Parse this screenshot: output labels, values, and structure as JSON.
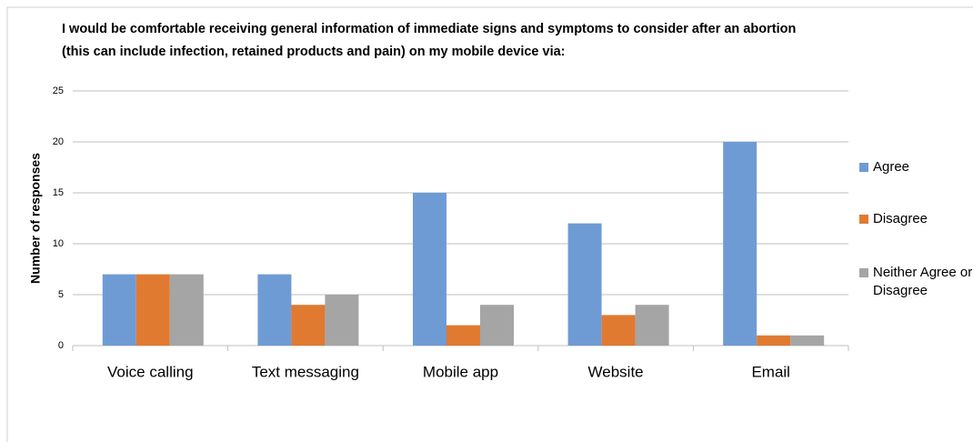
{
  "chart_data": {
    "type": "bar",
    "title": "I would be comfortable receiving general information of immediate signs and symptoms to consider after an abortion (this can include infection, retained products and pain) on my mobile device via:",
    "ylabel": "Number of responses",
    "categories": [
      "Voice calling",
      "Text messaging",
      "Mobile app",
      "Website",
      "Email"
    ],
    "series": [
      {
        "name": "Agree",
        "color": "#6f9bd5",
        "values": [
          7,
          7,
          15,
          12,
          20
        ]
      },
      {
        "name": "Disagree",
        "color": "#e07a31",
        "values": [
          7,
          4,
          2,
          3,
          1
        ]
      },
      {
        "name": "Neither Agree or Disagree",
        "color": "#a5a5a5",
        "values": [
          7,
          5,
          4,
          4,
          1
        ]
      }
    ],
    "ylim": [
      0,
      25
    ],
    "yticks": [
      0,
      5,
      10,
      15,
      20,
      25
    ],
    "grid": true,
    "legend": "right"
  }
}
